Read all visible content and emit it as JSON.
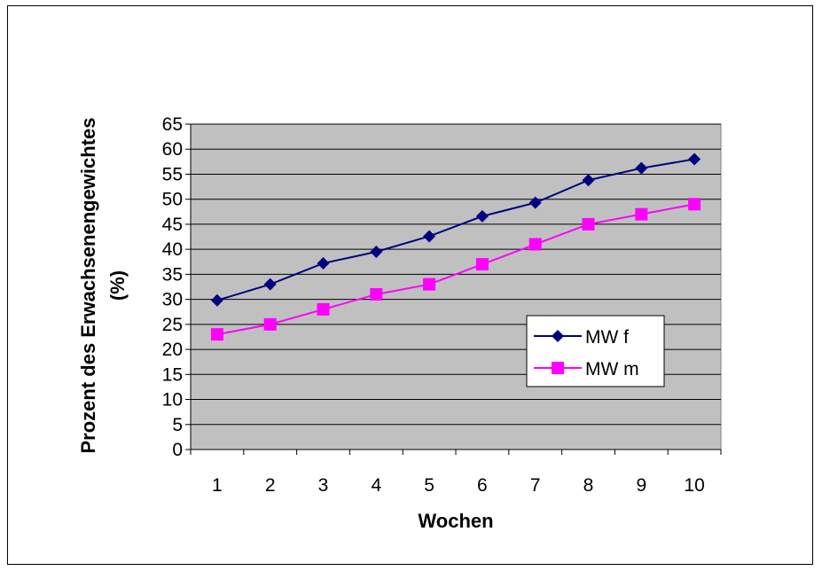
{
  "chart_data": {
    "type": "line",
    "title": "",
    "xlabel": "Wochen",
    "ylabel_line1": "Prozent des Erwachsenengewichtes",
    "ylabel_line2": "(%)",
    "categories": [
      "1",
      "2",
      "3",
      "4",
      "5",
      "6",
      "7",
      "8",
      "9",
      "10"
    ],
    "ylim": [
      0,
      65
    ],
    "yticks": [
      0,
      5,
      10,
      15,
      20,
      25,
      30,
      35,
      40,
      45,
      50,
      55,
      60,
      65
    ],
    "grid": true,
    "legend_position": "right-inside",
    "plot_background": "#c0c0c0",
    "series": [
      {
        "name": "MW f",
        "marker": "diamond",
        "color": "#000080",
        "values": [
          29.8,
          33,
          37.2,
          39.5,
          42.6,
          46.6,
          49.3,
          53.8,
          56.2,
          58
        ]
      },
      {
        "name": "MW m",
        "marker": "square",
        "color": "#ff00ff",
        "values": [
          23,
          25,
          28,
          31,
          33,
          37,
          41,
          45,
          47,
          49
        ]
      }
    ]
  }
}
